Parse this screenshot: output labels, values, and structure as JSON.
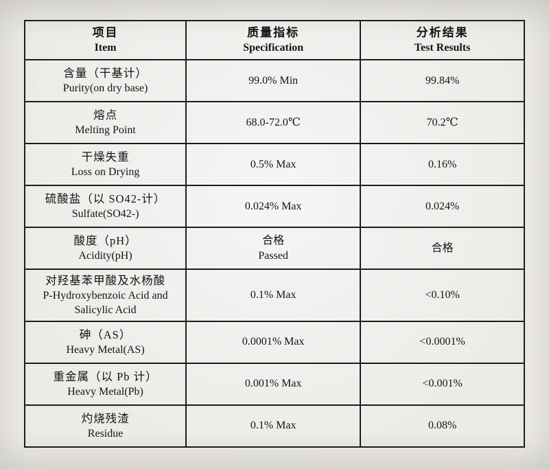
{
  "document": {
    "kind": "certificate-of-analysis-table",
    "colors": {
      "paper": "#edebe8",
      "border": "#1b1b1b",
      "text": "#121212"
    },
    "table": {
      "headers": [
        {
          "zh": "项目",
          "en": "Item"
        },
        {
          "zh": "质量指标",
          "en": "Specification"
        },
        {
          "zh": "分析结果",
          "en": "Test Results"
        }
      ],
      "rows": [
        {
          "item_zh": "含量（干基计）",
          "item_en": "Purity(on dry base)",
          "spec": "99.0% Min",
          "result": "99.84%"
        },
        {
          "item_zh": "熔点",
          "item_en": "Melting Point",
          "spec": "68.0-72.0℃",
          "result": "70.2℃"
        },
        {
          "item_zh": "干燥失重",
          "item_en": "Loss on Drying",
          "spec": "0.5% Max",
          "result": "0.16%"
        },
        {
          "item_zh": "硫酸盐（以 SO42-计）",
          "item_en": "Sulfate(SO42-)",
          "spec": "0.024% Max",
          "result": "0.024%"
        },
        {
          "item_zh": "酸度（pH）",
          "item_en": "Acidity(pH)",
          "spec": "合格",
          "spec_line2": "Passed",
          "result": "合格"
        },
        {
          "item_zh": "对羟基苯甲酸及水杨酸",
          "item_en": "P-Hydroxybenzoic Acid and Salicylic Acid",
          "spec": "0.1% Max",
          "result": "<0.10%"
        },
        {
          "item_zh": "砷（AS）",
          "item_en": "Heavy Metal(AS)",
          "spec": "0.0001% Max",
          "result": "<0.0001%"
        },
        {
          "item_zh": "重金属（以 Pb 计）",
          "item_en": "Heavy Metal(Pb)",
          "spec": "0.001% Max",
          "result": "<0.001%"
        },
        {
          "item_zh": "灼烧残渣",
          "item_en": "Residue",
          "spec": "0.1% Max",
          "result": "0.08%"
        }
      ]
    }
  }
}
